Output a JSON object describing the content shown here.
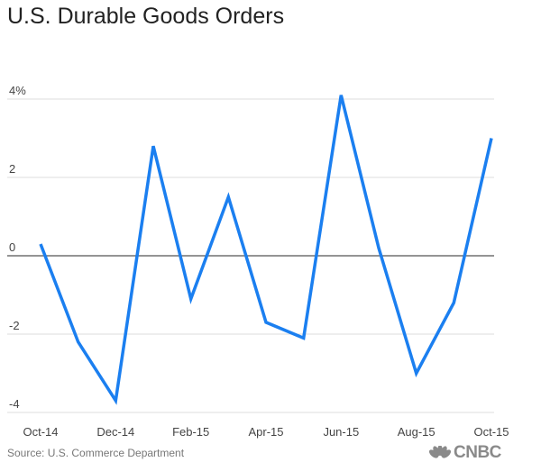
{
  "title": "U.S. Durable Goods Orders",
  "source": "Source: U.S. Commerce Department",
  "logo": {
    "text": "CNBC",
    "icon": "peacock-icon"
  },
  "colors": {
    "line": "#1b7ff0",
    "zero_line": "#555555",
    "grid": "#dcdcdc",
    "tick_text": "#444444"
  },
  "chart_data": {
    "type": "line",
    "title": "U.S. Durable Goods Orders",
    "xlabel": "",
    "ylabel": "",
    "x": [
      "Oct-14",
      "Nov-14",
      "Dec-14",
      "Jan-15",
      "Feb-15",
      "Mar-15",
      "Apr-15",
      "May-15",
      "Jun-15",
      "Jul-15",
      "Aug-15",
      "Sep-15",
      "Oct-15"
    ],
    "x_tick_labels": [
      "Oct-14",
      "Dec-14",
      "Feb-15",
      "Apr-15",
      "Jun-15",
      "Aug-15",
      "Oct-15"
    ],
    "series": [
      {
        "values": [
          0.3,
          -2.2,
          -3.7,
          2.8,
          -1.1,
          1.5,
          -1.7,
          -2.1,
          4.1,
          0.2,
          -3.0,
          -1.2,
          3.0
        ]
      }
    ],
    "y_ticks": [
      4,
      2,
      0,
      -2,
      -4
    ],
    "y_tick_labels": [
      "4%",
      "2",
      "0",
      "-2",
      "-4"
    ],
    "ylim": [
      -4,
      4
    ],
    "grid": true,
    "legend": "none"
  }
}
